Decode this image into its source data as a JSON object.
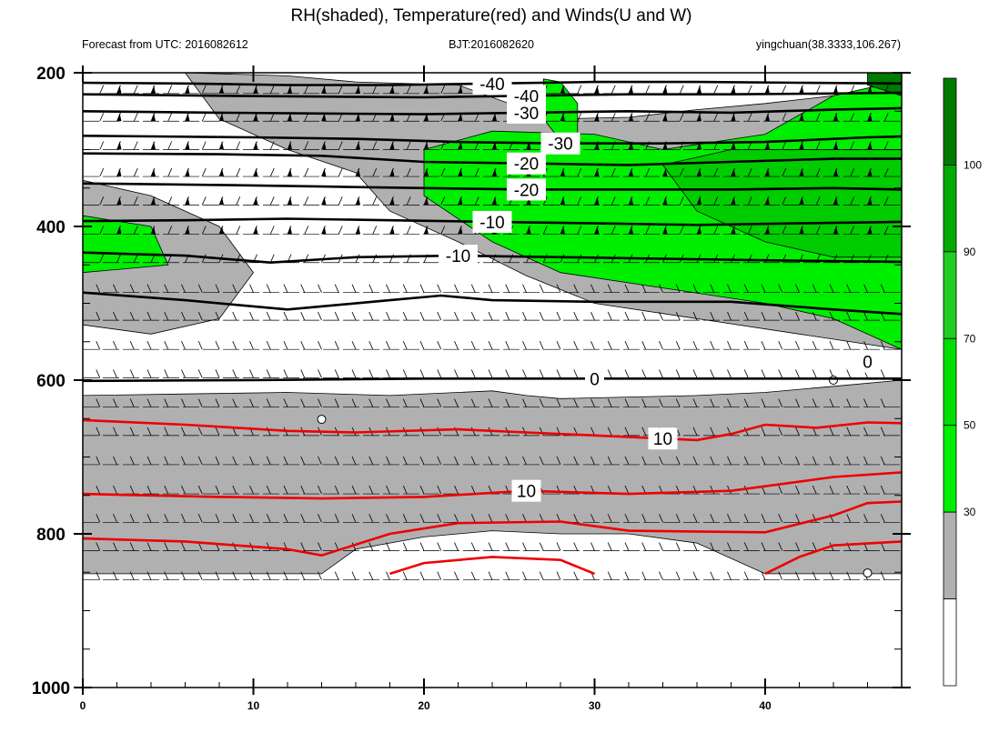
{
  "chart_data": {
    "type": "heatmap",
    "title": "RH(shaded), Temperature(red) and Winds(U and W)",
    "subtitle_left": "Forecast from UTC: 2016082612",
    "subtitle_center": "BJT:2016082620",
    "subtitle_right": "yingchuan(38.3333,106.267)",
    "x_ticks": [
      0,
      10,
      20,
      30,
      40
    ],
    "xlim": [
      0,
      48
    ],
    "y_ticks": [
      200,
      400,
      600,
      800,
      1000
    ],
    "ylim": [
      200,
      1000
    ],
    "y_inverted": true,
    "colorbar": {
      "labels": [
        30,
        50,
        70,
        90,
        100
      ],
      "colors": [
        "#ffffff",
        "#b0b0b0",
        "#00ee00",
        "#00dd00",
        "#22cc22",
        "#00aa00",
        "#007a00"
      ]
    },
    "temperature_contours": [
      {
        "level": -40,
        "label": "-40",
        "color": "#000000",
        "points": [
          [
            0,
            213
          ],
          [
            6,
            214
          ],
          [
            12,
            216
          ],
          [
            18,
            216
          ],
          [
            24,
            214
          ],
          [
            30,
            212
          ],
          [
            36,
            212
          ],
          [
            42,
            213
          ],
          [
            48,
            214
          ]
        ]
      },
      {
        "level": -40,
        "label": "-40",
        "color": "#000000",
        "points": [
          [
            0,
            228
          ],
          [
            8,
            230
          ],
          [
            14,
            231
          ],
          [
            20,
            232
          ],
          [
            26,
            230
          ],
          [
            32,
            228
          ],
          [
            38,
            228
          ],
          [
            44,
            227
          ],
          [
            48,
            226
          ]
        ]
      },
      {
        "level": -30,
        "label": "-30",
        "color": "#000000",
        "points": [
          [
            0,
            250
          ],
          [
            8,
            252
          ],
          [
            14,
            253
          ],
          [
            20,
            254
          ],
          [
            26,
            252
          ],
          [
            32,
            250
          ],
          [
            38,
            252
          ],
          [
            44,
            248
          ],
          [
            48,
            246
          ]
        ]
      },
      {
        "level": -30,
        "label": "-30",
        "color": "#000000",
        "points": [
          [
            0,
            282
          ],
          [
            10,
            284
          ],
          [
            16,
            286
          ],
          [
            22,
            290
          ],
          [
            28,
            292
          ],
          [
            34,
            292
          ],
          [
            40,
            290
          ],
          [
            46,
            284
          ],
          [
            48,
            283
          ]
        ]
      },
      {
        "level": -20,
        "label": "-20",
        "color": "#000000",
        "points": [
          [
            0,
            305
          ],
          [
            8,
            306
          ],
          [
            14,
            308
          ],
          [
            20,
            316
          ],
          [
            26,
            318
          ],
          [
            32,
            320
          ],
          [
            38,
            316
          ],
          [
            44,
            312
          ],
          [
            48,
            312
          ]
        ]
      },
      {
        "level": -20,
        "label": "-20",
        "color": "#000000",
        "points": [
          [
            0,
            344
          ],
          [
            8,
            346
          ],
          [
            14,
            348
          ],
          [
            20,
            350
          ],
          [
            26,
            352
          ],
          [
            32,
            352
          ],
          [
            38,
            352
          ],
          [
            44,
            350
          ],
          [
            48,
            352
          ]
        ]
      },
      {
        "level": -10,
        "label": "-10",
        "color": "#000000",
        "points": [
          [
            0,
            393
          ],
          [
            6,
            392
          ],
          [
            12,
            390
          ],
          [
            18,
            392
          ],
          [
            24,
            394
          ],
          [
            30,
            396
          ],
          [
            36,
            398
          ],
          [
            42,
            396
          ],
          [
            48,
            394
          ]
        ]
      },
      {
        "level": -10,
        "label": "-10",
        "color": "#000000",
        "points": [
          [
            0,
            434
          ],
          [
            6,
            438
          ],
          [
            11,
            447
          ],
          [
            16,
            440
          ],
          [
            22,
            438
          ],
          [
            28,
            440
          ],
          [
            34,
            442
          ],
          [
            40,
            444
          ],
          [
            48,
            446
          ]
        ]
      },
      {
        "level": -10,
        "label": "",
        "color": "#000000",
        "points": [
          [
            0,
            486
          ],
          [
            6,
            496
          ],
          [
            12,
            508
          ],
          [
            18,
            496
          ],
          [
            21,
            490
          ],
          [
            24,
            496
          ],
          [
            30,
            498
          ],
          [
            38,
            498
          ],
          [
            44,
            508
          ],
          [
            48,
            514
          ]
        ]
      },
      {
        "level": 10,
        "label": "10",
        "color": "#ee0000",
        "points": [
          [
            0,
            652
          ],
          [
            6,
            658
          ],
          [
            12,
            666
          ],
          [
            16,
            668
          ],
          [
            22,
            664
          ],
          [
            26,
            668
          ],
          [
            30,
            672
          ],
          [
            34,
            676
          ],
          [
            36,
            678
          ],
          [
            38,
            670
          ],
          [
            40,
            658
          ],
          [
            43,
            662
          ],
          [
            46,
            655
          ],
          [
            48,
            656
          ]
        ]
      },
      {
        "level": 10,
        "label": "10",
        "color": "#ee0000",
        "points": [
          [
            0,
            748
          ],
          [
            8,
            752
          ],
          [
            14,
            754
          ],
          [
            20,
            752
          ],
          [
            26,
            744
          ],
          [
            32,
            748
          ],
          [
            38,
            744
          ],
          [
            44,
            726
          ],
          [
            48,
            720
          ]
        ]
      },
      {
        "level": 10,
        "label": "",
        "color": "#ee0000",
        "points": [
          [
            0,
            806
          ],
          [
            6,
            810
          ],
          [
            12,
            820
          ],
          [
            14,
            828
          ],
          [
            18,
            800
          ],
          [
            22,
            786
          ],
          [
            28,
            784
          ],
          [
            32,
            796
          ],
          [
            40,
            798
          ],
          [
            44,
            776
          ],
          [
            46,
            760
          ],
          [
            48,
            758
          ]
        ]
      },
      {
        "level": 10,
        "label": "",
        "color": "#ee0000",
        "points": [
          [
            18,
            852
          ],
          [
            20,
            838
          ],
          [
            24,
            830
          ],
          [
            28,
            834
          ],
          [
            30,
            852
          ]
        ]
      },
      {
        "level": 10,
        "label": "",
        "color": "#ee0000",
        "points": [
          [
            40,
            852
          ],
          [
            42,
            830
          ],
          [
            44,
            815
          ],
          [
            48,
            810
          ]
        ]
      },
      {
        "level": 0,
        "label": "0",
        "color": "#000000",
        "points": [
          [
            0,
            601
          ],
          [
            10,
            600
          ],
          [
            20,
            598
          ],
          [
            30,
            598
          ],
          [
            40,
            598
          ],
          [
            48,
            598
          ]
        ]
      },
      {
        "level": 0,
        "label": "0",
        "color": "#ffffff",
        "points": [
          [
            42,
            566
          ],
          [
            44,
            572
          ],
          [
            46,
            576
          ],
          [
            48,
            580
          ]
        ]
      }
    ],
    "rh_regions": [
      {
        "rh_level": 50,
        "color": "#b0b0b0",
        "points": [
          [
            0,
            620
          ],
          [
            6,
            618
          ],
          [
            12,
            616
          ],
          [
            18,
            620
          ],
          [
            24,
            614
          ],
          [
            26,
            620
          ],
          [
            28,
            624
          ],
          [
            32,
            622
          ],
          [
            36,
            620
          ],
          [
            40,
            616
          ],
          [
            44,
            608
          ],
          [
            48,
            600
          ],
          [
            48,
            852
          ],
          [
            40,
            852
          ],
          [
            36,
            812
          ],
          [
            32,
            800
          ],
          [
            28,
            800
          ],
          [
            24,
            796
          ],
          [
            20,
            804
          ],
          [
            16,
            820
          ],
          [
            14,
            852
          ],
          [
            0,
            852
          ]
        ]
      },
      {
        "rh_level": 50,
        "color": "#b0b0b0",
        "points": [
          [
            6,
            200
          ],
          [
            12,
            204
          ],
          [
            16,
            212
          ],
          [
            22,
            216
          ],
          [
            26,
            248
          ],
          [
            28,
            260
          ],
          [
            32,
            258
          ],
          [
            36,
            248
          ],
          [
            40,
            240
          ],
          [
            44,
            230
          ],
          [
            48,
            220
          ],
          [
            48,
            560
          ],
          [
            42,
            540
          ],
          [
            36,
            520
          ],
          [
            30,
            500
          ],
          [
            26,
            464
          ],
          [
            22,
            420
          ],
          [
            18,
            380
          ],
          [
            16,
            330
          ],
          [
            12,
            300
          ],
          [
            8,
            260
          ]
        ]
      },
      {
        "rh_level": 50,
        "color": "#b0b0b0",
        "points": [
          [
            0,
            340
          ],
          [
            4,
            360
          ],
          [
            8,
            400
          ],
          [
            10,
            460
          ],
          [
            8,
            520
          ],
          [
            4,
            540
          ],
          [
            0,
            528
          ]
        ]
      },
      {
        "rh_level": 70,
        "color": "#00ee00",
        "points": [
          [
            20,
            300
          ],
          [
            24,
            276
          ],
          [
            30,
            280
          ],
          [
            34,
            300
          ],
          [
            40,
            280
          ],
          [
            44,
            230
          ],
          [
            48,
            210
          ],
          [
            48,
            560
          ],
          [
            44,
            520
          ],
          [
            40,
            500
          ],
          [
            34,
            480
          ],
          [
            28,
            460
          ],
          [
            24,
            420
          ],
          [
            20,
            360
          ]
        ]
      },
      {
        "rh_level": 70,
        "color": "#00ee00",
        "points": [
          [
            0,
            386
          ],
          [
            4,
            400
          ],
          [
            5,
            450
          ],
          [
            0,
            460
          ]
        ]
      },
      {
        "rh_level": 70,
        "color": "#00ee00",
        "points": [
          [
            27,
            208
          ],
          [
            28,
            212
          ],
          [
            29,
            240
          ],
          [
            29,
            280
          ],
          [
            28,
            288
          ],
          [
            27,
            260
          ]
        ]
      },
      {
        "rh_level": 90,
        "color": "#00cc00",
        "points": [
          [
            34,
            320
          ],
          [
            38,
            300
          ],
          [
            42,
            300
          ],
          [
            48,
            300
          ],
          [
            48,
            440
          ],
          [
            44,
            440
          ],
          [
            40,
            420
          ],
          [
            36,
            380
          ]
        ]
      },
      {
        "rh_level": 100,
        "color": "#007a00",
        "points": [
          [
            46,
            200
          ],
          [
            48,
            200
          ],
          [
            48,
            230
          ],
          [
            46,
            216
          ]
        ]
      }
    ],
    "wind_levels": [
      227,
      263,
      300,
      335,
      372,
      410,
      447,
      486,
      522,
      560,
      597,
      635,
      672,
      710,
      748,
      785,
      822,
      860
    ],
    "calm_markers": [
      [
        14,
        651
      ],
      [
        44,
        600
      ],
      [
        46,
        851
      ]
    ]
  }
}
